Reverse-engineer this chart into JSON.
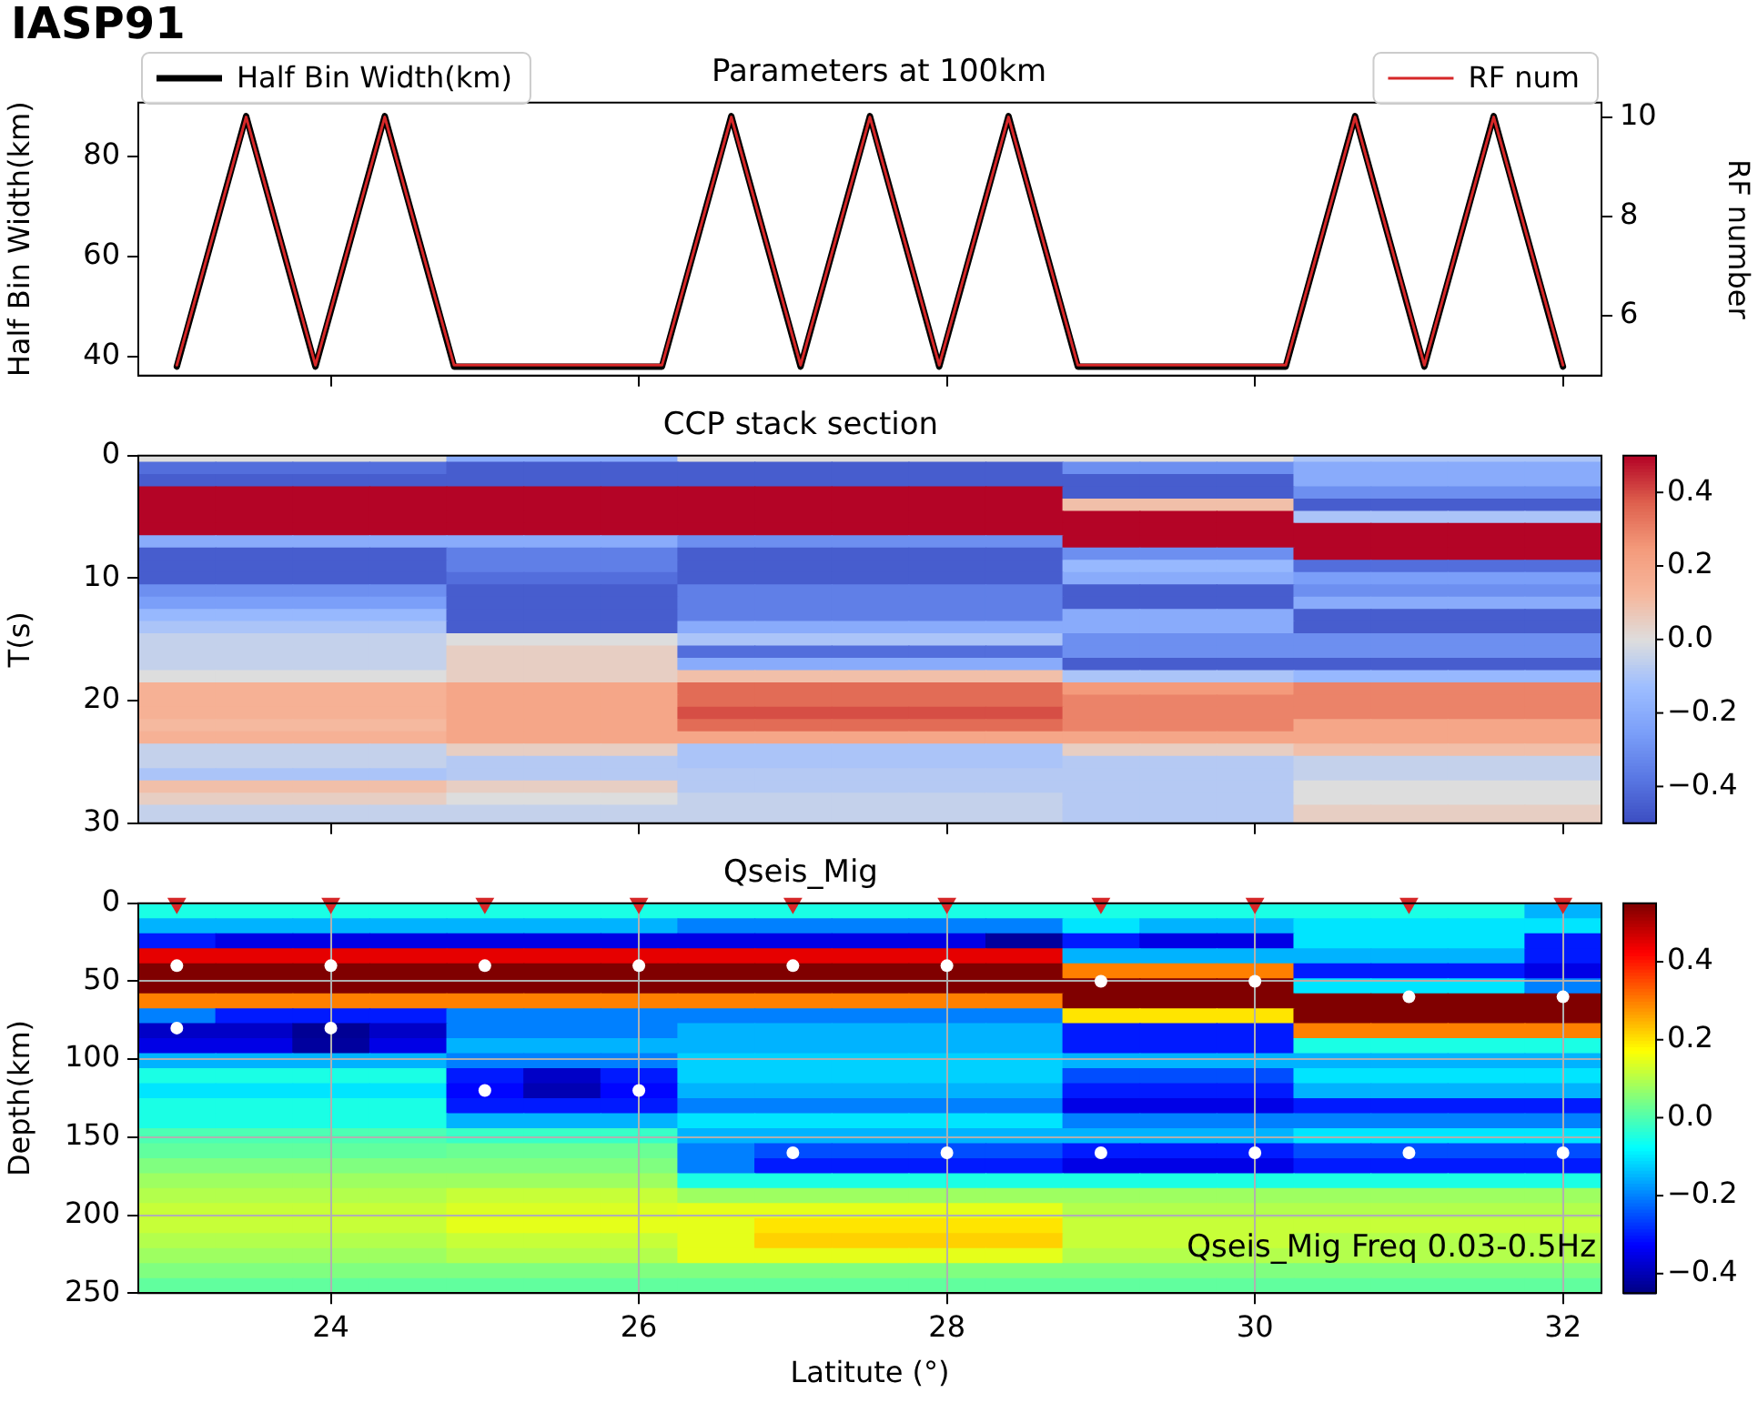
{
  "chart_data": [
    {
      "type": "line",
      "title": "Parameters at 100km",
      "ylabel": "Half Bin Width(km)",
      "y2label": "RF number",
      "annotations": [
        "IASP91"
      ],
      "x": [
        23,
        23.45,
        23.9,
        24.35,
        24.8,
        25.25,
        25.7,
        26.15,
        26.6,
        27.05,
        27.5,
        27.95,
        28.4,
        28.85,
        29.3,
        29.75,
        30.2,
        30.65,
        31.1,
        31.55,
        32
      ],
      "series": [
        {
          "name": "Half Bin Width(km)",
          "color": "#000000",
          "values": [
            38,
            88,
            38,
            88,
            38,
            38,
            38,
            38,
            88,
            38,
            88,
            38,
            88,
            38,
            38,
            38,
            38,
            88,
            38,
            88,
            38
          ]
        },
        {
          "name": "RF num",
          "color": "#d62728",
          "axis": "y2",
          "values": [
            5,
            10,
            5,
            10,
            5,
            5,
            5,
            5,
            10,
            5,
            10,
            5,
            10,
            5,
            5,
            5,
            5,
            10,
            5,
            10,
            5
          ]
        }
      ],
      "xlim": [
        22.75,
        32.25
      ],
      "xticks": [
        24,
        26,
        28,
        30,
        32
      ],
      "ylim": [
        36.2,
        90.7
      ],
      "yticks": [
        40,
        60,
        80
      ],
      "y2lim": [
        4.79,
        10.29
      ],
      "y2ticks": [
        6,
        8,
        10
      ],
      "legend": "top",
      "tick_labels": "y"
    },
    {
      "type": "heatmap",
      "title": "CCP stack section",
      "ylabel": "T(s)",
      "categories": [
        null,
        null,
        "24",
        null,
        null,
        null,
        "26",
        null,
        null,
        null,
        "28",
        null,
        null,
        null,
        "30",
        null,
        null,
        null,
        "32"
      ],
      "y_categories": [
        "0",
        null,
        null,
        null,
        null,
        null,
        null,
        null,
        null,
        null,
        "10",
        null,
        null,
        null,
        null,
        null,
        null,
        null,
        null,
        null,
        "20",
        null,
        null,
        null,
        null,
        null,
        null,
        null,
        null,
        null,
        "30"
      ],
      "cells": [
        [
          0,
          0,
          0,
          0,
          -0.2,
          -0.2,
          -0.2,
          0,
          0,
          0,
          0,
          0,
          0,
          0,
          0,
          -0.1,
          -0.1,
          -0.1,
          -0.1
        ],
        [
          -0.4,
          -0.4,
          -0.4,
          -0.4,
          -0.45,
          -0.45,
          -0.45,
          -0.45,
          -0.45,
          -0.45,
          -0.45,
          -0.45,
          -0.3,
          -0.3,
          -0.3,
          -0.2,
          -0.2,
          -0.2,
          -0.2
        ],
        [
          -0.45,
          -0.45,
          -0.45,
          -0.45,
          -0.45,
          -0.45,
          -0.45,
          -0.45,
          -0.45,
          -0.45,
          -0.45,
          -0.45,
          -0.45,
          -0.45,
          -0.45,
          -0.2,
          -0.2,
          -0.2,
          -0.2
        ],
        [
          0.5,
          0.5,
          0.5,
          0.5,
          0.5,
          0.5,
          0.5,
          0.5,
          0.5,
          0.5,
          0.5,
          0.5,
          -0.45,
          -0.45,
          -0.45,
          -0.3,
          -0.3,
          -0.3,
          -0.3
        ],
        [
          0.5,
          0.5,
          0.5,
          0.5,
          0.5,
          0.5,
          0.5,
          0.5,
          0.5,
          0.5,
          0.5,
          0.5,
          0.1,
          0.1,
          0.1,
          -0.45,
          -0.45,
          -0.45,
          -0.45
        ],
        [
          0.5,
          0.5,
          0.5,
          0.5,
          0.5,
          0.5,
          0.5,
          0.5,
          0.5,
          0.5,
          0.5,
          0.5,
          0.5,
          0.5,
          0.5,
          -0.1,
          -0.1,
          -0.1,
          -0.1
        ],
        [
          0.5,
          0.5,
          0.5,
          0.5,
          0.5,
          0.5,
          0.5,
          0.5,
          0.5,
          0.5,
          0.5,
          0.5,
          0.5,
          0.5,
          0.5,
          0.5,
          0.5,
          0.5,
          0.5
        ],
        [
          -0.2,
          -0.2,
          -0.2,
          -0.2,
          -0.2,
          -0.2,
          -0.2,
          -0.3,
          -0.3,
          -0.3,
          -0.3,
          -0.3,
          0.5,
          0.5,
          0.5,
          0.5,
          0.5,
          0.5,
          0.5
        ],
        [
          -0.45,
          -0.45,
          -0.45,
          -0.45,
          -0.35,
          -0.35,
          -0.35,
          -0.45,
          -0.45,
          -0.45,
          -0.45,
          -0.45,
          -0.3,
          -0.3,
          -0.3,
          0.5,
          0.5,
          0.5,
          0.5
        ],
        [
          -0.45,
          -0.45,
          -0.45,
          -0.45,
          -0.35,
          -0.35,
          -0.35,
          -0.45,
          -0.45,
          -0.45,
          -0.45,
          -0.45,
          -0.15,
          -0.15,
          -0.15,
          -0.4,
          -0.4,
          -0.4,
          -0.4
        ],
        [
          -0.45,
          -0.45,
          -0.45,
          -0.45,
          -0.4,
          -0.4,
          -0.4,
          -0.45,
          -0.45,
          -0.45,
          -0.45,
          -0.45,
          -0.2,
          -0.2,
          -0.2,
          -0.25,
          -0.25,
          -0.25,
          -0.25
        ],
        [
          -0.3,
          -0.3,
          -0.3,
          -0.3,
          -0.45,
          -0.45,
          -0.45,
          -0.35,
          -0.35,
          -0.35,
          -0.35,
          -0.35,
          -0.45,
          -0.45,
          -0.45,
          -0.3,
          -0.3,
          -0.3,
          -0.3
        ],
        [
          -0.25,
          -0.25,
          -0.25,
          -0.25,
          -0.45,
          -0.45,
          -0.45,
          -0.35,
          -0.35,
          -0.35,
          -0.35,
          -0.35,
          -0.45,
          -0.45,
          -0.45,
          -0.2,
          -0.2,
          -0.2,
          -0.2
        ],
        [
          -0.15,
          -0.15,
          -0.15,
          -0.15,
          -0.45,
          -0.45,
          -0.45,
          -0.35,
          -0.35,
          -0.35,
          -0.35,
          -0.35,
          -0.2,
          -0.2,
          -0.2,
          -0.45,
          -0.45,
          -0.45,
          -0.45
        ],
        [
          -0.1,
          -0.1,
          -0.1,
          -0.1,
          -0.45,
          -0.45,
          -0.45,
          -0.2,
          -0.2,
          -0.2,
          -0.2,
          -0.2,
          -0.2,
          -0.2,
          -0.2,
          -0.45,
          -0.45,
          -0.45,
          -0.45
        ],
        [
          -0.05,
          -0.05,
          -0.05,
          -0.05,
          0,
          0,
          0,
          -0.1,
          -0.1,
          -0.1,
          -0.1,
          -0.1,
          -0.3,
          -0.3,
          -0.3,
          -0.3,
          -0.3,
          -0.3,
          -0.3
        ],
        [
          -0.05,
          -0.05,
          -0.05,
          -0.05,
          0.05,
          0.05,
          0.05,
          -0.4,
          -0.4,
          -0.4,
          -0.4,
          -0.4,
          -0.3,
          -0.3,
          -0.3,
          -0.3,
          -0.3,
          -0.3,
          -0.3
        ],
        [
          -0.05,
          -0.05,
          -0.05,
          -0.05,
          0.05,
          0.05,
          0.05,
          -0.2,
          -0.2,
          -0.2,
          -0.2,
          -0.2,
          -0.45,
          -0.45,
          -0.45,
          -0.45,
          -0.45,
          -0.45,
          -0.45
        ],
        [
          0,
          0,
          0,
          0,
          0.05,
          0.05,
          0.05,
          0.1,
          0.1,
          0.1,
          0.1,
          0.1,
          -0.1,
          -0.1,
          -0.1,
          -0.15,
          -0.15,
          -0.15,
          -0.15
        ],
        [
          0.15,
          0.15,
          0.15,
          0.15,
          0.2,
          0.2,
          0.2,
          0.35,
          0.35,
          0.35,
          0.35,
          0.35,
          0.25,
          0.25,
          0.25,
          0.3,
          0.3,
          0.3,
          0.3
        ],
        [
          0.15,
          0.15,
          0.15,
          0.15,
          0.2,
          0.2,
          0.2,
          0.35,
          0.35,
          0.35,
          0.35,
          0.35,
          0.3,
          0.3,
          0.3,
          0.3,
          0.3,
          0.3,
          0.3
        ],
        [
          0.15,
          0.15,
          0.15,
          0.15,
          0.2,
          0.2,
          0.2,
          0.4,
          0.4,
          0.4,
          0.4,
          0.4,
          0.3,
          0.3,
          0.3,
          0.3,
          0.3,
          0.3,
          0.3
        ],
        [
          0.12,
          0.12,
          0.12,
          0.12,
          0.2,
          0.2,
          0.2,
          0.35,
          0.35,
          0.35,
          0.35,
          0.35,
          0.3,
          0.3,
          0.3,
          0.2,
          0.2,
          0.2,
          0.2
        ],
        [
          0.15,
          0.15,
          0.15,
          0.15,
          0.2,
          0.2,
          0.2,
          0.2,
          0.2,
          0.2,
          0.2,
          0.2,
          0.2,
          0.2,
          0.2,
          0.2,
          0.2,
          0.2,
          0.2
        ],
        [
          -0.05,
          -0.05,
          -0.05,
          -0.05,
          0.05,
          0.05,
          0.05,
          -0.1,
          -0.1,
          -0.1,
          -0.1,
          -0.1,
          0.05,
          0.05,
          0.05,
          0.1,
          0.1,
          0.1,
          0.1
        ],
        [
          -0.05,
          -0.05,
          -0.05,
          -0.05,
          -0.08,
          -0.08,
          -0.08,
          -0.1,
          -0.1,
          -0.1,
          -0.1,
          -0.1,
          -0.08,
          -0.08,
          -0.08,
          -0.05,
          -0.05,
          -0.05,
          -0.05
        ],
        [
          -0.1,
          -0.1,
          -0.1,
          -0.1,
          -0.08,
          -0.08,
          -0.08,
          -0.08,
          -0.08,
          -0.08,
          -0.08,
          -0.08,
          -0.08,
          -0.08,
          -0.08,
          -0.05,
          -0.05,
          -0.05,
          -0.05
        ],
        [
          0.1,
          0.1,
          0.1,
          0.1,
          0.05,
          0.05,
          0.05,
          -0.08,
          -0.08,
          -0.08,
          -0.08,
          -0.08,
          -0.08,
          -0.08,
          -0.08,
          0,
          0,
          0,
          0
        ],
        [
          0.05,
          0.05,
          0.05,
          0.05,
          0,
          0,
          0,
          -0.05,
          -0.05,
          -0.05,
          -0.05,
          -0.05,
          -0.08,
          -0.08,
          -0.08,
          0,
          0,
          0,
          0
        ],
        [
          -0.05,
          -0.05,
          -0.05,
          -0.05,
          -0.05,
          -0.05,
          -0.05,
          -0.05,
          -0.05,
          -0.05,
          -0.05,
          -0.05,
          -0.08,
          -0.08,
          -0.08,
          0.05,
          0.05,
          0.05,
          0.05
        ],
        [
          -0.05,
          -0.05,
          -0.05,
          -0.05,
          -0.05,
          -0.05,
          -0.05,
          -0.05,
          -0.05,
          -0.05,
          -0.05,
          -0.05,
          -0.08,
          -0.08,
          -0.08,
          0.05,
          0.05,
          0.05,
          0.05
        ]
      ],
      "clim": [
        -0.5,
        0.5
      ],
      "cticks": [
        {
          "value": -0.4,
          "label": "−0.4"
        },
        {
          "value": -0.2,
          "label": "−0.2"
        },
        {
          "value": 0,
          "label": "0.0"
        },
        {
          "value": 0.2,
          "label": "0.2"
        },
        {
          "value": 0.4,
          "label": "0.4"
        }
      ],
      "tick_labels": "y"
    },
    {
      "type": "heatmap",
      "title": "Qseis_Mig",
      "xlabel": "Latitute (°)",
      "ylabel": "Depth(km)",
      "annotations": [
        "Qseis_Mig Freq 0.03-0.5Hz"
      ],
      "categories": [
        null,
        null,
        "24",
        null,
        null,
        null,
        "26",
        null,
        null,
        null,
        "28",
        null,
        null,
        null,
        "30",
        null,
        null,
        null,
        "32"
      ],
      "yticks": [
        0,
        50,
        100,
        150,
        200,
        250
      ],
      "ylim": [
        250,
        0
      ],
      "cells": [
        [
          -0.05,
          -0.05,
          -0.05,
          -0.05,
          -0.05,
          -0.05,
          -0.05,
          -0.05,
          -0.05,
          -0.05,
          -0.05,
          -0.05,
          -0.05,
          -0.05,
          -0.05,
          -0.05,
          -0.05,
          -0.05,
          -0.15
        ],
        [
          -0.15,
          -0.15,
          -0.15,
          -0.15,
          -0.15,
          -0.15,
          -0.15,
          -0.2,
          -0.2,
          -0.2,
          -0.2,
          -0.2,
          -0.1,
          -0.15,
          -0.15,
          -0.1,
          -0.1,
          -0.1,
          -0.1
        ],
        [
          -0.3,
          -0.35,
          -0.35,
          -0.35,
          -0.35,
          -0.35,
          -0.35,
          -0.35,
          -0.35,
          -0.35,
          -0.35,
          -0.42,
          -0.3,
          -0.35,
          -0.35,
          -0.1,
          -0.1,
          -0.1,
          -0.3
        ],
        [
          0.45,
          0.45,
          0.45,
          0.45,
          0.45,
          0.45,
          0.45,
          0.45,
          0.45,
          0.45,
          0.45,
          0.45,
          -0.15,
          -0.15,
          -0.15,
          -0.15,
          -0.15,
          -0.15,
          -0.3
        ],
        [
          0.55,
          0.55,
          0.55,
          0.55,
          0.55,
          0.55,
          0.55,
          0.55,
          0.55,
          0.55,
          0.55,
          0.55,
          0.3,
          0.3,
          0.3,
          -0.3,
          -0.3,
          -0.3,
          -0.35
        ],
        [
          0.55,
          0.55,
          0.55,
          0.55,
          0.55,
          0.55,
          0.55,
          0.55,
          0.55,
          0.55,
          0.55,
          0.55,
          0.55,
          0.55,
          0.55,
          -0.1,
          -0.1,
          -0.1,
          -0.2
        ],
        [
          0.3,
          0.3,
          0.3,
          0.3,
          0.3,
          0.3,
          0.3,
          0.3,
          0.3,
          0.3,
          0.3,
          0.3,
          0.55,
          0.55,
          0.55,
          0.55,
          0.55,
          0.55,
          0.55
        ],
        [
          -0.2,
          -0.3,
          -0.3,
          -0.3,
          -0.2,
          -0.2,
          -0.2,
          -0.2,
          -0.2,
          -0.2,
          -0.2,
          -0.2,
          0.2,
          0.2,
          0.2,
          0.55,
          0.55,
          0.55,
          0.55
        ],
        [
          -0.38,
          -0.38,
          -0.43,
          -0.38,
          -0.2,
          -0.2,
          -0.2,
          -0.15,
          -0.15,
          -0.15,
          -0.15,
          -0.15,
          -0.3,
          -0.3,
          -0.3,
          0.3,
          0.3,
          0.3,
          0.3
        ],
        [
          -0.35,
          -0.35,
          -0.42,
          -0.35,
          -0.15,
          -0.15,
          -0.15,
          -0.15,
          -0.15,
          -0.15,
          -0.15,
          -0.15,
          -0.3,
          -0.3,
          -0.3,
          -0.05,
          -0.05,
          -0.05,
          -0.05
        ],
        [
          -0.15,
          -0.15,
          -0.15,
          -0.15,
          -0.2,
          -0.2,
          -0.2,
          -0.12,
          -0.12,
          -0.12,
          -0.12,
          -0.12,
          -0.15,
          -0.15,
          -0.15,
          -0.15,
          -0.15,
          -0.15,
          -0.15
        ],
        [
          -0.05,
          -0.05,
          -0.05,
          -0.05,
          -0.3,
          -0.38,
          -0.3,
          -0.12,
          -0.12,
          -0.12,
          -0.12,
          -0.12,
          -0.25,
          -0.25,
          -0.25,
          -0.1,
          -0.1,
          -0.1,
          -0.1
        ],
        [
          -0.1,
          -0.1,
          -0.1,
          -0.1,
          -0.32,
          -0.4,
          -0.32,
          -0.15,
          -0.15,
          -0.15,
          -0.15,
          -0.15,
          -0.3,
          -0.3,
          -0.3,
          -0.15,
          -0.15,
          -0.15,
          -0.15
        ],
        [
          -0.05,
          -0.05,
          -0.05,
          -0.05,
          -0.3,
          -0.3,
          -0.3,
          -0.2,
          -0.2,
          -0.2,
          -0.2,
          -0.2,
          -0.35,
          -0.35,
          -0.35,
          -0.3,
          -0.3,
          -0.3,
          -0.3
        ],
        [
          -0.05,
          -0.05,
          -0.05,
          -0.05,
          -0.15,
          -0.15,
          -0.15,
          -0.1,
          -0.1,
          -0.1,
          -0.1,
          -0.1,
          -0.2,
          -0.2,
          -0.2,
          -0.2,
          -0.2,
          -0.2,
          -0.2
        ],
        [
          0,
          0,
          0,
          0,
          -0.02,
          -0.02,
          -0.02,
          -0.15,
          -0.15,
          -0.15,
          -0.15,
          -0.15,
          -0.15,
          -0.15,
          -0.15,
          -0.1,
          -0.1,
          -0.1,
          -0.1
        ],
        [
          0.02,
          0.02,
          0.02,
          0.02,
          0.03,
          0.03,
          0.03,
          -0.2,
          -0.25,
          -0.25,
          -0.25,
          -0.25,
          -0.3,
          -0.3,
          -0.3,
          -0.25,
          -0.25,
          -0.25,
          -0.25
        ],
        [
          0.05,
          0.05,
          0.05,
          0.05,
          0.05,
          0.05,
          0.05,
          -0.2,
          -0.3,
          -0.3,
          -0.3,
          -0.3,
          -0.35,
          -0.35,
          -0.35,
          -0.3,
          -0.3,
          -0.3,
          -0.3
        ],
        [
          0.08,
          0.08,
          0.08,
          0.08,
          0.08,
          0.08,
          0.08,
          -0.05,
          -0.05,
          -0.05,
          -0.05,
          -0.05,
          -0.05,
          -0.05,
          -0.05,
          -0.05,
          -0.05,
          -0.05,
          -0.05
        ],
        [
          0.1,
          0.1,
          0.1,
          0.1,
          0.12,
          0.12,
          0.12,
          0.08,
          0.08,
          0.08,
          0.08,
          0.08,
          0.08,
          0.08,
          0.08,
          0.08,
          0.08,
          0.08,
          0.08
        ],
        [
          0.12,
          0.12,
          0.12,
          0.12,
          0.14,
          0.14,
          0.14,
          0.15,
          0.15,
          0.15,
          0.15,
          0.15,
          0.1,
          0.1,
          0.1,
          0.1,
          0.1,
          0.1,
          0.1
        ],
        [
          0.12,
          0.12,
          0.12,
          0.12,
          0.15,
          0.15,
          0.15,
          0.15,
          0.2,
          0.2,
          0.2,
          0.2,
          0.12,
          0.12,
          0.12,
          0.12,
          0.12,
          0.12,
          0.12
        ],
        [
          0.1,
          0.1,
          0.1,
          0.1,
          0.12,
          0.12,
          0.12,
          0.15,
          0.22,
          0.22,
          0.22,
          0.22,
          0.12,
          0.12,
          0.12,
          0.1,
          0.1,
          0.1,
          0.1
        ],
        [
          0.08,
          0.08,
          0.08,
          0.08,
          0.1,
          0.1,
          0.1,
          0.15,
          0.15,
          0.15,
          0.15,
          0.15,
          0.1,
          0.1,
          0.1,
          0.1,
          0.1,
          0.1,
          0.1
        ],
        [
          0.05,
          0.05,
          0.05,
          0.05,
          0.05,
          0.05,
          0.05,
          0.05,
          0.05,
          0.05,
          0.05,
          0.05,
          0.05,
          0.05,
          0.05,
          0.05,
          0.05,
          0.05,
          0.05
        ],
        [
          0.02,
          0.02,
          0.02,
          0.02,
          0.02,
          0.02,
          0.02,
          0.02,
          0.02,
          0.02,
          0.02,
          0.02,
          0.02,
          0.02,
          0.02,
          0.02,
          0.02,
          0.02,
          0.02
        ]
      ],
      "clim": [
        -0.45,
        0.55
      ],
      "cticks": [
        {
          "value": -0.4,
          "label": "−0.4"
        },
        {
          "value": -0.2,
          "label": "−0.2"
        },
        {
          "value": 0,
          "label": "0.0"
        },
        {
          "value": 0.2,
          "label": "0.2"
        },
        {
          "value": 0.4,
          "label": "0.4"
        }
      ],
      "grid": true,
      "series": [
        {
          "type": "scatter",
          "marker": "triangle",
          "color": "#d62728",
          "values": [
            0,
            null,
            0,
            null,
            0,
            null,
            0,
            null,
            0,
            null,
            0,
            null,
            0,
            null,
            0,
            null,
            0,
            null,
            0
          ]
        },
        {
          "type": "scatter",
          "marker": "circle",
          "color": "#ffffff",
          "values": [
            40,
            null,
            40,
            null,
            40,
            null,
            40,
            null,
            40,
            null,
            40,
            null,
            50,
            null,
            50,
            null,
            60,
            null,
            60
          ]
        },
        {
          "type": "scatter",
          "marker": "circle",
          "color": "#ffffff",
          "values": [
            80,
            null,
            80,
            null,
            120,
            null,
            120,
            null,
            160,
            null,
            160,
            null,
            160,
            null,
            160,
            null,
            160,
            null,
            160
          ]
        }
      ]
    }
  ]
}
